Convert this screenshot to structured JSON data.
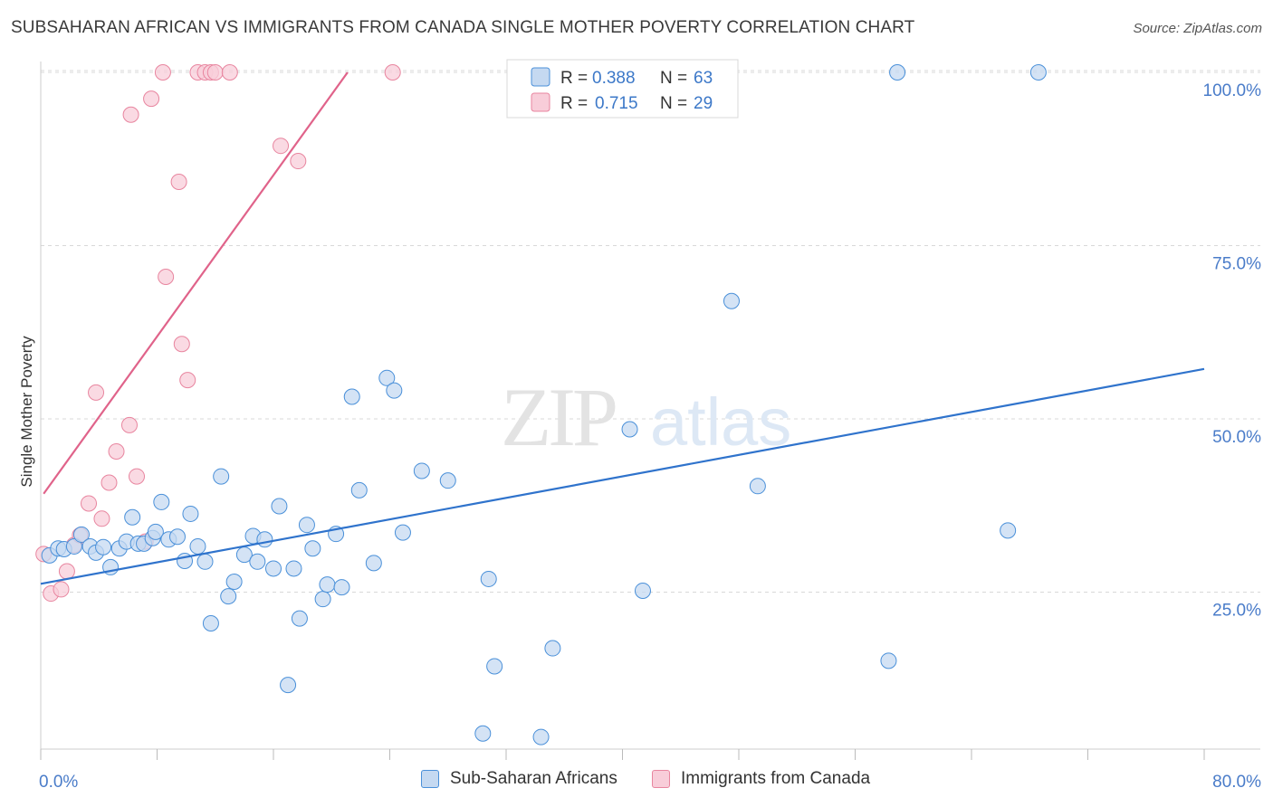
{
  "title": "SUBSAHARAN AFRICAN VS IMMIGRANTS FROM CANADA SINGLE MOTHER POVERTY CORRELATION CHART",
  "source": "Source: ZipAtlas.com",
  "watermark": {
    "zip": "ZIP",
    "atlas": "atlas"
  },
  "colors": {
    "blue": "#4a90d9",
    "blue_fill": "#c5d9f1",
    "blue_line": "#2f73cc",
    "pink": "#e8859f",
    "pink_fill": "#f8cdd9",
    "pink_line": "#e0638a",
    "axis_text": "#4a7cc9",
    "grid": "#d8d8d8"
  },
  "legend_top": {
    "rows": [
      {
        "r_label": "R =",
        "r_value": "0.388",
        "n_label": "N =",
        "n_value": "63"
      },
      {
        "r_label": "R =",
        "r_value": "0.715",
        "n_label": "N =",
        "n_value": "29"
      }
    ]
  },
  "legend_bottom": {
    "series1": "Sub-Saharan Africans",
    "series2": "Immigrants from Canada"
  },
  "chart_data": {
    "type": "scatter",
    "title": "SUBSAHARAN AFRICAN VS IMMIGRANTS FROM CANADA SINGLE MOTHER POVERTY CORRELATION CHART",
    "xlabel": "",
    "ylabel": "Single Mother Poverty",
    "xlim": [
      0,
      80
    ],
    "ylim": [
      0,
      105
    ],
    "x_tick_labels": [
      "0.0%",
      "80.0%"
    ],
    "y_ticks": [
      25,
      50,
      75,
      100
    ],
    "y_tick_labels": [
      "25.0%",
      "50.0%",
      "75.0%",
      "100.0%"
    ],
    "grid": true,
    "series": [
      {
        "name": "Sub-Saharan Africans",
        "R": 0.388,
        "N": 63,
        "trend": {
          "x": [
            0,
            80
          ],
          "y": [
            26.2,
            57.2
          ]
        },
        "points": [
          [
            0.6,
            30.3
          ],
          [
            1.2,
            31.3
          ],
          [
            1.6,
            31.2
          ],
          [
            2.3,
            31.6
          ],
          [
            2.8,
            33.3
          ],
          [
            3.4,
            31.6
          ],
          [
            3.8,
            30.7
          ],
          [
            4.3,
            31.5
          ],
          [
            4.8,
            28.6
          ],
          [
            5.4,
            31.3
          ],
          [
            5.9,
            32.3
          ],
          [
            6.3,
            35.8
          ],
          [
            6.7,
            32.0
          ],
          [
            7.1,
            32.0
          ],
          [
            7.7,
            32.8
          ],
          [
            7.9,
            33.7
          ],
          [
            8.3,
            38.0
          ],
          [
            8.8,
            32.6
          ],
          [
            9.4,
            33.0
          ],
          [
            9.9,
            29.5
          ],
          [
            10.3,
            36.3
          ],
          [
            10.8,
            31.6
          ],
          [
            11.3,
            29.4
          ],
          [
            11.7,
            20.5
          ],
          [
            12.4,
            41.7
          ],
          [
            12.9,
            24.4
          ],
          [
            13.3,
            26.5
          ],
          [
            14.0,
            30.4
          ],
          [
            14.6,
            33.1
          ],
          [
            14.9,
            29.4
          ],
          [
            15.4,
            32.6
          ],
          [
            16.0,
            28.4
          ],
          [
            16.4,
            37.4
          ],
          [
            17.0,
            11.6
          ],
          [
            17.4,
            28.4
          ],
          [
            17.8,
            21.2
          ],
          [
            18.3,
            34.7
          ],
          [
            18.7,
            31.3
          ],
          [
            19.4,
            24.0
          ],
          [
            19.7,
            26.1
          ],
          [
            20.3,
            33.4
          ],
          [
            20.7,
            25.7
          ],
          [
            21.4,
            53.2
          ],
          [
            21.9,
            39.7
          ],
          [
            22.9,
            29.2
          ],
          [
            23.8,
            55.9
          ],
          [
            24.3,
            54.1
          ],
          [
            24.9,
            33.6
          ],
          [
            26.2,
            42.5
          ],
          [
            28.0,
            41.1
          ],
          [
            30.4,
            4.6
          ],
          [
            30.8,
            26.9
          ],
          [
            31.2,
            14.3
          ],
          [
            34.4,
            4.1
          ],
          [
            35.2,
            16.9
          ],
          [
            40.5,
            48.5
          ],
          [
            41.4,
            25.2
          ],
          [
            47.5,
            67.0
          ],
          [
            49.3,
            40.3
          ],
          [
            58.3,
            15.1
          ],
          [
            58.9,
            100.0
          ],
          [
            66.5,
            33.9
          ],
          [
            68.6,
            100.0
          ]
        ]
      },
      {
        "name": "Immigrants from Canada",
        "R": 0.715,
        "N": 29,
        "trend": {
          "x": [
            0.2,
            21.1
          ],
          "y": [
            39.2,
            100.0
          ]
        },
        "points": [
          [
            0.2,
            30.5
          ],
          [
            0.7,
            24.8
          ],
          [
            1.4,
            25.4
          ],
          [
            1.8,
            28.0
          ],
          [
            2.3,
            31.8
          ],
          [
            2.7,
            33.2
          ],
          [
            3.3,
            37.8
          ],
          [
            3.8,
            53.8
          ],
          [
            4.2,
            35.6
          ],
          [
            4.7,
            40.8
          ],
          [
            5.2,
            45.3
          ],
          [
            6.1,
            49.1
          ],
          [
            6.6,
            41.7
          ],
          [
            7.2,
            32.3
          ],
          [
            6.2,
            93.9
          ],
          [
            7.6,
            96.2
          ],
          [
            8.4,
            100.0
          ],
          [
            8.6,
            70.5
          ],
          [
            9.5,
            84.2
          ],
          [
            9.7,
            60.8
          ],
          [
            10.1,
            55.6
          ],
          [
            10.8,
            100.0
          ],
          [
            11.3,
            100.0
          ],
          [
            11.7,
            100.0
          ],
          [
            12.0,
            100.0
          ],
          [
            13.0,
            100.0
          ],
          [
            16.5,
            89.4
          ],
          [
            17.7,
            87.2
          ],
          [
            24.2,
            100.0
          ]
        ]
      }
    ]
  }
}
